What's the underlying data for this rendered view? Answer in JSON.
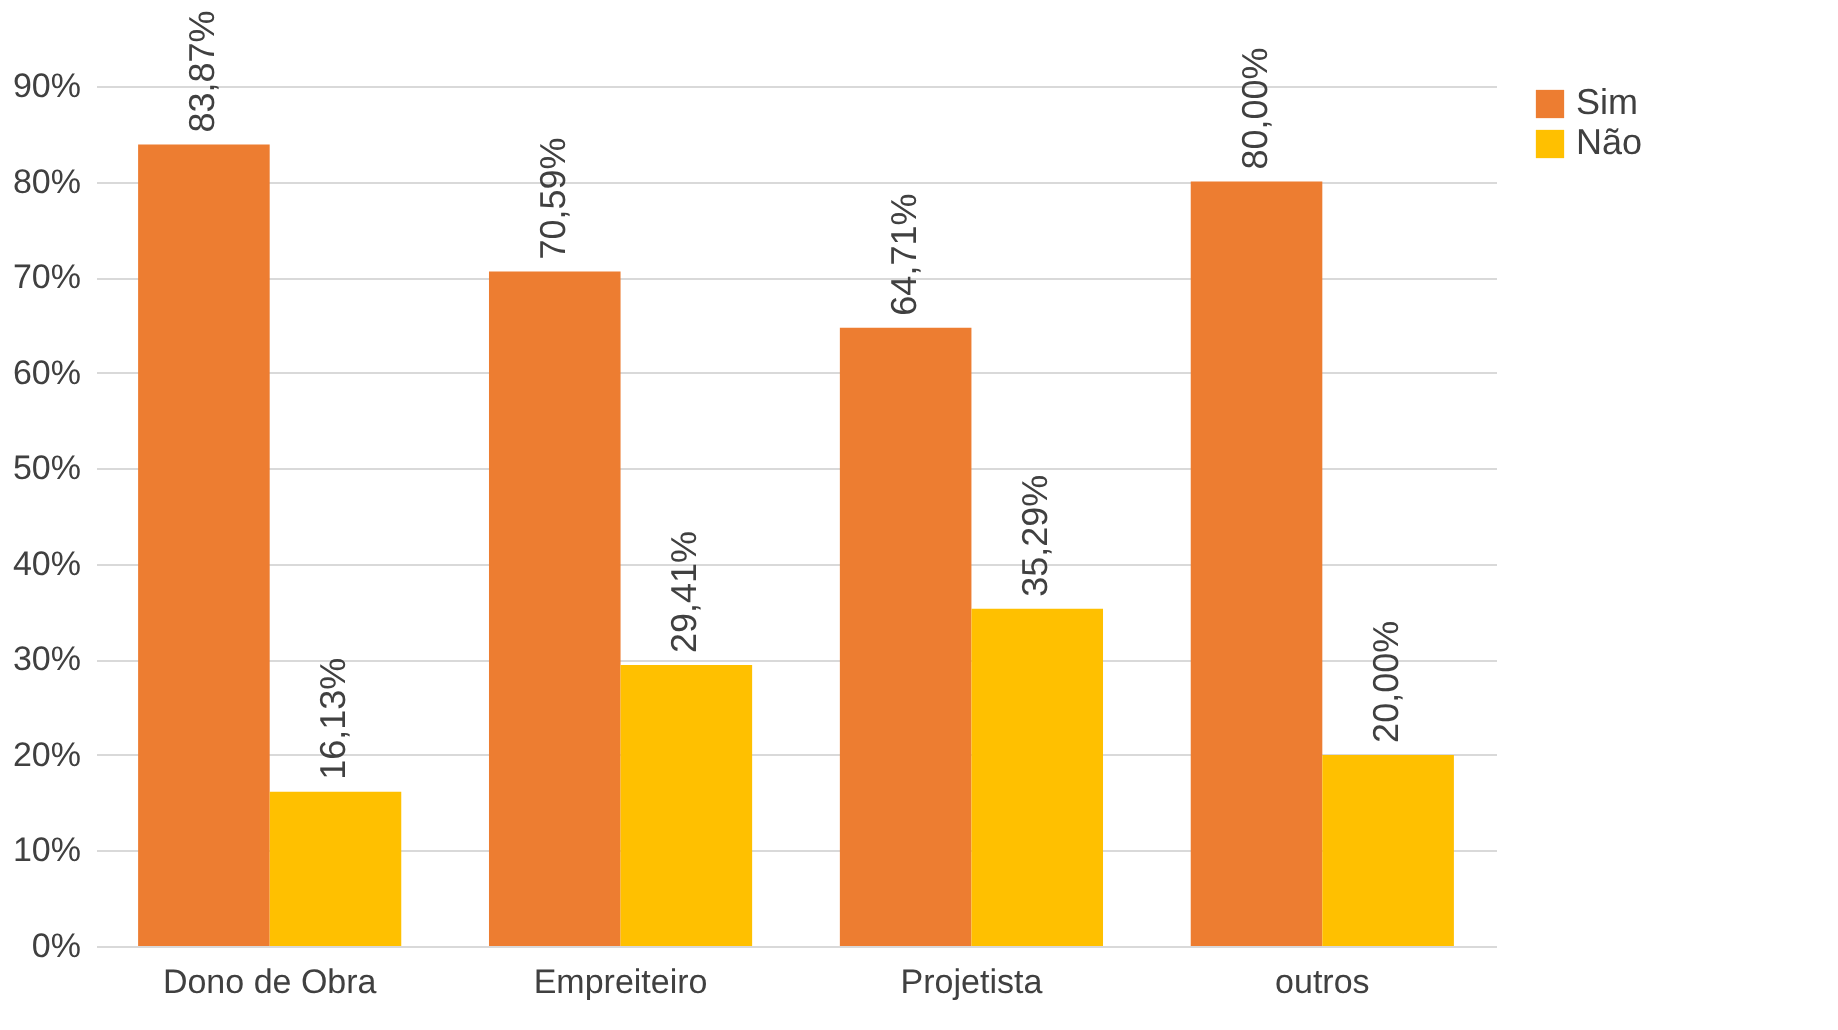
{
  "chart_data": {
    "type": "bar",
    "categories": [
      "Dono de Obra",
      "Empreiteiro",
      "Projetista",
      "outros"
    ],
    "series": [
      {
        "name": "Sim",
        "color": "#ed7d31",
        "values": [
          83.87,
          70.59,
          64.71,
          80.0
        ],
        "value_labels": [
          "83,87%",
          "70,59%",
          "64,71%",
          "80,00%"
        ]
      },
      {
        "name": "Não",
        "color": "#ffc000",
        "values": [
          16.13,
          29.41,
          35.29,
          20.0
        ],
        "value_labels": [
          "16,13%",
          "29,41%",
          "35,29%",
          "20,00%"
        ]
      }
    ],
    "ylim": [
      0,
      90
    ],
    "yticks": [
      {
        "value": 0,
        "label": "0%"
      },
      {
        "value": 10,
        "label": "10%"
      },
      {
        "value": 20,
        "label": "20%"
      },
      {
        "value": 30,
        "label": "30%"
      },
      {
        "value": 40,
        "label": "40%"
      },
      {
        "value": 50,
        "label": "50%"
      },
      {
        "value": 60,
        "label": "60%"
      },
      {
        "value": 70,
        "label": "70%"
      },
      {
        "value": 80,
        "label": "80%"
      },
      {
        "value": 90,
        "label": "90%"
      }
    ],
    "grid": "y",
    "legend": "right"
  }
}
